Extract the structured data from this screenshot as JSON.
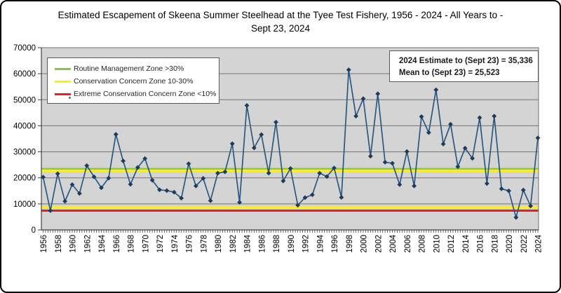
{
  "title": {
    "line1": "Estimated Escapement of Skeena Summer Steelhead at the Tyee Test Fishery, 1956 - 2024 - All Years to -",
    "line2": "Sept 23, 2024"
  },
  "legend": {
    "items": [
      {
        "label": "Routine Management Zone >30%",
        "color": "#8CC63E"
      },
      {
        "label": "Conservation Concern Zone 10-30%",
        "color": "#FFF200"
      },
      {
        "label": "Extreme Conservation Concern Zone <10%",
        "color": "#ED1C24"
      }
    ]
  },
  "annotation": {
    "line1": "2024 Estimate to (Sept 23) =  35,336",
    "line2": "Mean to (Sept 23) = 25,523"
  },
  "chart_data": {
    "type": "line",
    "title": "Estimated Escapement of Skeena Summer Steelhead at the Tyee Test Fishery, 1956 - 2024 - All Years to - Sept 23, 2024",
    "xlabel": "",
    "ylabel": "",
    "ylim": [
      0,
      70000
    ],
    "grid": true,
    "legend_position": "top-left",
    "x": [
      1956,
      1957,
      1958,
      1959,
      1960,
      1961,
      1962,
      1963,
      1964,
      1965,
      1966,
      1967,
      1968,
      1969,
      1970,
      1971,
      1972,
      1973,
      1974,
      1975,
      1976,
      1977,
      1978,
      1979,
      1980,
      1981,
      1982,
      1983,
      1984,
      1985,
      1986,
      1987,
      1988,
      1989,
      1990,
      1991,
      1992,
      1993,
      1994,
      1995,
      1996,
      1997,
      1998,
      1999,
      2000,
      2001,
      2002,
      2003,
      2004,
      2005,
      2006,
      2007,
      2008,
      2009,
      2010,
      2011,
      2012,
      2013,
      2014,
      2015,
      2016,
      2017,
      2018,
      2019,
      2020,
      2021,
      2022,
      2023,
      2024
    ],
    "values": [
      20300,
      7400,
      21600,
      11000,
      17400,
      14000,
      24700,
      20400,
      16200,
      19900,
      36700,
      26500,
      17500,
      24000,
      27400,
      19100,
      15400,
      15100,
      14500,
      12200,
      25400,
      16900,
      19800,
      11200,
      21800,
      22300,
      33100,
      10600,
      47800,
      31500,
      36600,
      21800,
      41400,
      18800,
      23600,
      9500,
      12400,
      13500,
      21800,
      20500,
      23800,
      12500,
      61500,
      43700,
      50400,
      28300,
      52300,
      26000,
      25600,
      17400,
      30100,
      16900,
      43500,
      37400,
      53800,
      33000,
      40600,
      24300,
      31400,
      27500,
      43100,
      17800,
      43700,
      15800,
      15000,
      4800,
      15300,
      9200,
      35336
    ],
    "yticks": [
      0,
      10000,
      20000,
      30000,
      40000,
      50000,
      60000,
      70000
    ],
    "xticks": [
      1956,
      1958,
      1960,
      1962,
      1964,
      1966,
      1968,
      1970,
      1972,
      1974,
      1976,
      1978,
      1980,
      1982,
      1984,
      1986,
      1988,
      1990,
      1992,
      1994,
      1996,
      1998,
      2000,
      2002,
      2004,
      2006,
      2008,
      2010,
      2012,
      2014,
      2016,
      2018,
      2020,
      2022,
      2024
    ],
    "reference_lines": [
      {
        "name": "routine-management-zone-line",
        "value": 23500,
        "color": "#8CC63E",
        "width": 2.2
      },
      {
        "name": "conservation-concern-upper-line",
        "value": 22650,
        "color": "#FFF200",
        "width": 3
      },
      {
        "name": "conservation-concern-lower-line",
        "value": 8600,
        "color": "#FFF200",
        "width": 3
      },
      {
        "name": "extreme-conservation-zone-line",
        "value": 7400,
        "color": "#ED1C24",
        "width": 3
      }
    ],
    "colors": {
      "line": "#2B5880",
      "marker": "#1E3C5C",
      "plot_bg": "#D4D4D4",
      "gridline": "#737373",
      "axis": "#404040"
    }
  }
}
